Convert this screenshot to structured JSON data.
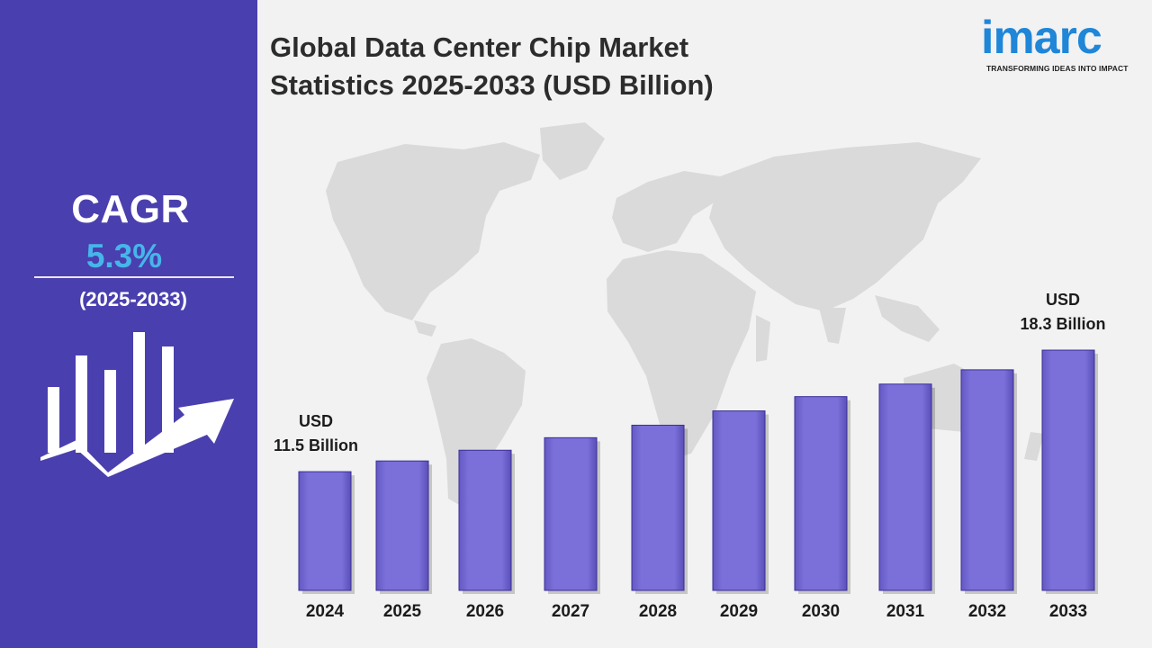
{
  "cagr": {
    "label": "CAGR",
    "value": "5.3%",
    "period": "(2025-2033)"
  },
  "title_line1": "Global Data Center Chip Market",
  "title_line2": "Statistics 2025-2033 (USD Billion)",
  "logo": {
    "wordmark": "imarc",
    "tagline": "TRANSFORMING IDEAS INTO IMPACT"
  },
  "colors": {
    "left_panel": "#4a3fae",
    "bar": "#7b6fd9",
    "cagr_value": "#46b6ea",
    "logo": "#1f86d8",
    "map": "#dadada"
  },
  "icons": {
    "growth": "bar-chart-trend-arrow-icon",
    "background": "world-map"
  },
  "chart_data": {
    "type": "bar",
    "categories": [
      "2024",
      "2025",
      "2026",
      "2027",
      "2028",
      "2029",
      "2030",
      "2031",
      "2032",
      "2033"
    ],
    "values": [
      11.5,
      12.1,
      12.7,
      13.4,
      14.1,
      14.9,
      15.7,
      16.4,
      17.2,
      18.3
    ],
    "annotations": [
      {
        "category": "2024",
        "line1": "USD",
        "line2": "11.5 Billion"
      },
      {
        "category": "2033",
        "line1": "USD",
        "line2": "18.3 Billion"
      }
    ],
    "title": "Global Data Center Chip Market Statistics 2025-2033 (USD Billion)",
    "grid": false
  }
}
